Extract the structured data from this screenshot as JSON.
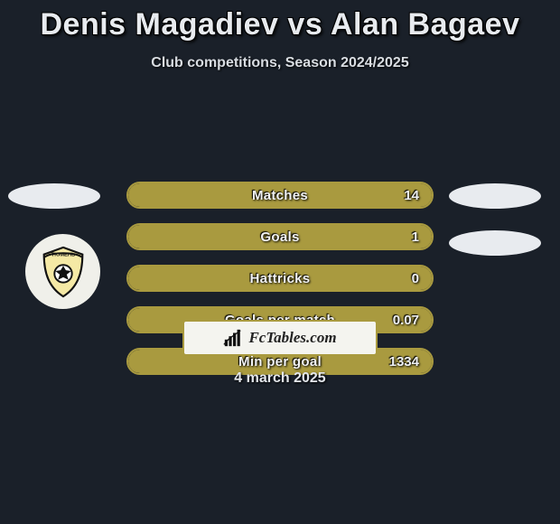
{
  "title": "Denis Magadiev vs Alan Bagaev",
  "subtitle": "Club competitions, Season 2024/2025",
  "date": "4 march 2025",
  "attribution": "FcTables.com",
  "colors": {
    "background": "#1a2029",
    "bar_border": "#a99a3f",
    "bar_fill": "#a99a3f",
    "text": "#e8ebef",
    "oval": "#e8ebef"
  },
  "stats": [
    {
      "label": "Matches",
      "value": "14",
      "fill_pct": 100
    },
    {
      "label": "Goals",
      "value": "1",
      "fill_pct": 100
    },
    {
      "label": "Hattricks",
      "value": "0",
      "fill_pct": 100
    },
    {
      "label": "Goals per match",
      "value": "0.07",
      "fill_pct": 100
    },
    {
      "label": "Min per goal",
      "value": "1334",
      "fill_pct": 100
    }
  ]
}
